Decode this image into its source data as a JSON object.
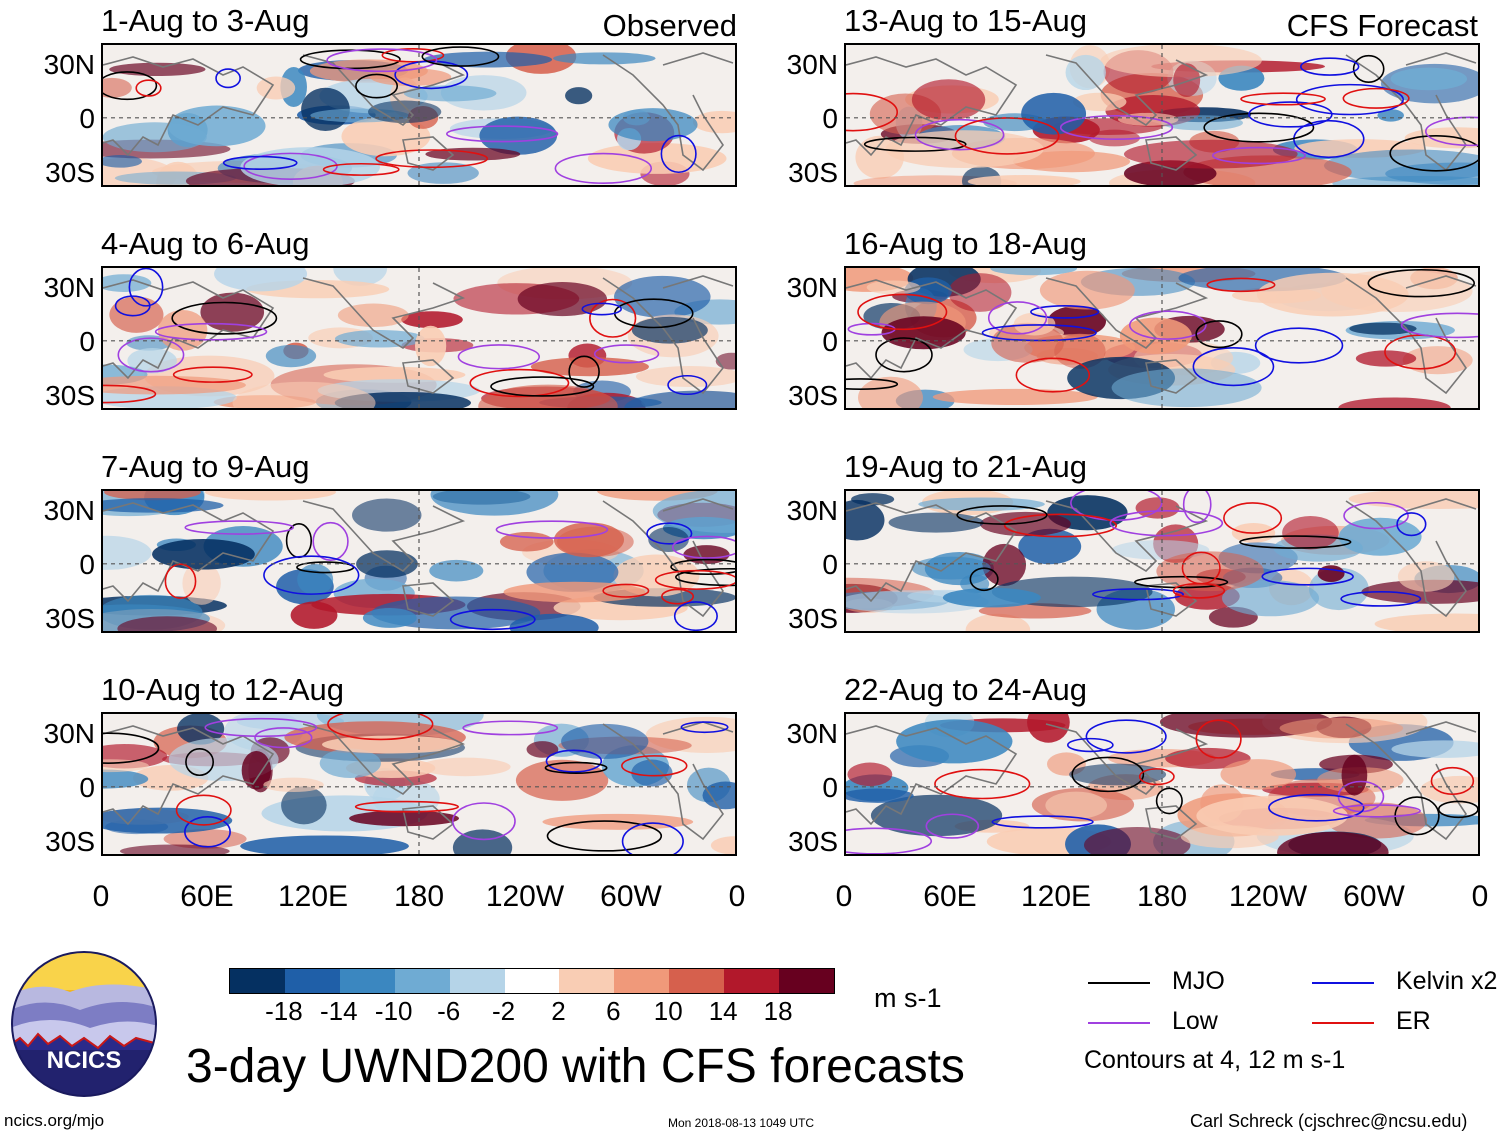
{
  "main_title": "3-day UWND200 with CFS forecasts",
  "column_tags": {
    "observed": "Observed",
    "forecast": "CFS Forecast"
  },
  "panels": {
    "observed": [
      {
        "title": "1-Aug to 3-Aug"
      },
      {
        "title": "4-Aug to 6-Aug"
      },
      {
        "title": "7-Aug to 9-Aug"
      },
      {
        "title": "10-Aug to 12-Aug"
      }
    ],
    "forecast": [
      {
        "title": "13-Aug to 15-Aug"
      },
      {
        "title": "16-Aug to 18-Aug"
      },
      {
        "title": "19-Aug to 21-Aug"
      },
      {
        "title": "22-Aug to 24-Aug"
      }
    ]
  },
  "lat_labels": [
    "30N",
    "0",
    "30S"
  ],
  "lon_labels": [
    "0",
    "60E",
    "120E",
    "180",
    "120W",
    "60W",
    "0"
  ],
  "colorbar": {
    "units": "m s-1",
    "ticks": [
      "-18",
      "-14",
      "-10",
      "-6",
      "-2",
      "2",
      "6",
      "10",
      "14",
      "18"
    ],
    "colors": [
      "#053061",
      "#1f5fa8",
      "#3b87c0",
      "#6fabd3",
      "#b5d4e8",
      "#ffffff",
      "#f9cdb4",
      "#f0997a",
      "#d6604d",
      "#b2182b",
      "#67001f"
    ]
  },
  "legend": {
    "items": [
      {
        "label": "MJO",
        "color": "#000000"
      },
      {
        "label": "Kelvin x2",
        "color": "#1010e0"
      },
      {
        "label": "Low",
        "color": "#a040e0"
      },
      {
        "label": "ER",
        "color": "#e01010"
      }
    ],
    "note": "Contours at 4, 12 m s-1"
  },
  "footer": {
    "url": "ncics.org/mjo",
    "timestamp": "Mon 2018-08-13 1049 UTC",
    "credit": "Carl Schreck (cjschrec@ncsu.edu)",
    "logo_text": "NCICS"
  }
}
